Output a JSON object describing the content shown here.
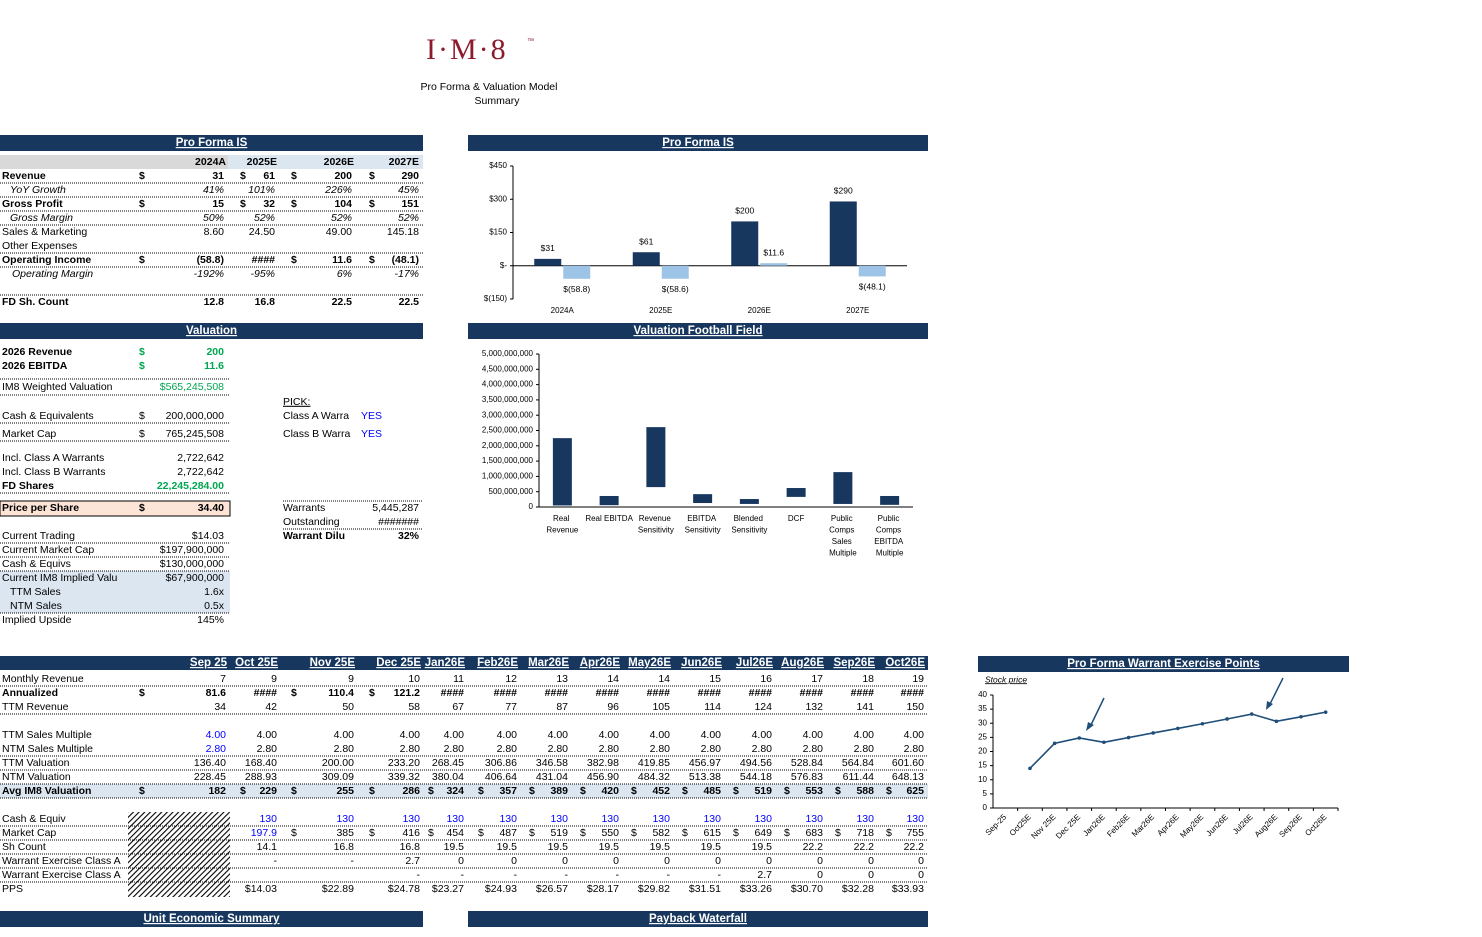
{
  "header": {
    "logo": "I·M·8",
    "trademark": "™",
    "title": "Pro Forma & Valuation Model",
    "subtitle": "Summary"
  },
  "sections": {
    "pro_forma_is": "Pro Forma IS",
    "pro_forma_is_chart": "Pro Forma IS",
    "valuation": "Valuation",
    "football_field": "Valuation Football Field ",
    "warrant_chart": "Pro Forma Warrant Exercise Points",
    "unit_economic": "Unit Economic Summary",
    "payback": "Payback Waterfall"
  },
  "is_table": {
    "columns": [
      "2024A",
      "2025E",
      "2026E",
      "2027E"
    ],
    "rows": [
      {
        "label": "Revenue",
        "currency": [
          "$",
          "$",
          "$",
          "$"
        ],
        "values": [
          "31",
          "61",
          "200",
          "290"
        ]
      },
      {
        "label": "YoY Growth",
        "values": [
          "41%",
          "101%",
          "226%",
          "45%"
        ]
      },
      {
        "label": "Gross Profit",
        "currency": [
          "$",
          "$",
          "$",
          "$"
        ],
        "values": [
          "15",
          "32",
          "104",
          "151"
        ]
      },
      {
        "label": "Gross Margin",
        "values": [
          "50%",
          "52%",
          "52%",
          "52%"
        ]
      },
      {
        "label": "Sales & Marketing",
        "values": [
          "8.60",
          "24.50",
          "49.00",
          "145.18"
        ]
      },
      {
        "label": "Other Expenses"
      },
      {
        "label": "Operating Income",
        "currency": [
          "$",
          null,
          "$",
          "$"
        ],
        "values": [
          "(58.8)",
          "####",
          "11.6",
          "(48.1)"
        ]
      },
      {
        "label": "Operating Margin",
        "values": [
          "-192%",
          "-95%",
          "6%",
          "-17%"
        ]
      },
      {
        "label": "FD Sh. Count",
        "values": [
          "12.8",
          "16.8",
          "22.5",
          "22.5"
        ]
      }
    ]
  },
  "valuation": {
    "rows": [
      {
        "label": "2026 Revenue",
        "currency": "$",
        "value": "200"
      },
      {
        "label": "2026 EBITDA",
        "currency": "$",
        "value": "11.6"
      },
      {
        "label": "IM8 Weighted Valuation",
        "value": "$565,245,508"
      },
      {
        "label": "Cash & Equivalents",
        "currency": "$",
        "value": "200,000,000"
      },
      {
        "label": "Market Cap",
        "currency": "$",
        "value": "765,245,508"
      },
      {
        "label": "Incl. Class A Warrants",
        "value": "2,722,642"
      },
      {
        "label": "Incl. Class B Warrants",
        "value": "2,722,642"
      },
      {
        "label": "FD Shares",
        "value": "22,245,284.00"
      },
      {
        "label": "Price per Share",
        "currency": "$",
        "value": "34.40"
      },
      {
        "label": "Current Trading",
        "value": "$14.03"
      },
      {
        "label": "Current Market Cap",
        "value": "$197,900,000"
      },
      {
        "label": "Cash & Equivs",
        "value": "$130,000,000"
      },
      {
        "label": "Current IM8 Implied Valu",
        "value": "$67,900,000"
      },
      {
        "label": "TTM Sales",
        "value": "1.6x"
      },
      {
        "label": "NTM Sales",
        "value": "0.5x"
      },
      {
        "label": "Implied Upside",
        "value": "145%"
      }
    ],
    "pick": {
      "title": "PICK:",
      "rows": [
        {
          "label": "Class A Warra",
          "value": "YES"
        },
        {
          "label": "Class B Warra",
          "value": "YES"
        }
      ]
    },
    "warrants": [
      {
        "label": "Warrants",
        "value": "5,445,287"
      },
      {
        "label": "Outstanding",
        "value": "#######"
      },
      {
        "label": "Warrant Dilu",
        "value": "32%"
      }
    ]
  },
  "monthly_table": {
    "columns": [
      "Sep 25",
      "Oct 25E",
      "Nov 25E",
      "Dec 25E",
      "Jan26E",
      "Feb26E",
      "Mar26E",
      "Apr26E",
      "May26E",
      "Jun26E",
      "Jul26E",
      "Aug26E",
      "Sep26E",
      "Oct26E"
    ],
    "rows": [
      {
        "label": "Monthly Revenue",
        "values": [
          "7",
          "9",
          "9",
          "10",
          "11",
          "12",
          "13",
          "14",
          "14",
          "15",
          "16",
          "17",
          "18",
          "19"
        ]
      },
      {
        "label": "Annualized",
        "currency": [
          "$",
          null,
          "$",
          "$",
          null,
          null,
          null,
          null,
          null,
          null,
          null,
          null,
          null,
          null
        ],
        "values": [
          "81.6",
          "####",
          "110.4",
          "121.2",
          "####",
          "####",
          "####",
          "####",
          "####",
          "####",
          "####",
          "####",
          "####",
          "####"
        ]
      },
      {
        "label": "TTM Revenue",
        "values": [
          "34",
          "42",
          "50",
          "58",
          "67",
          "77",
          "87",
          "96",
          "105",
          "114",
          "124",
          "132",
          "141",
          "150"
        ]
      },
      {
        "label": "TTM Sales Multiple",
        "values": [
          "4.00",
          "4.00",
          "4.00",
          "4.00",
          "4.00",
          "4.00",
          "4.00",
          "4.00",
          "4.00",
          "4.00",
          "4.00",
          "4.00",
          "4.00",
          "4.00"
        ]
      },
      {
        "label": "NTM Sales Multiple",
        "values": [
          "2.80",
          "2.80",
          "2.80",
          "2.80",
          "2.80",
          "2.80",
          "2.80",
          "2.80",
          "2.80",
          "2.80",
          "2.80",
          "2.80",
          "2.80",
          "2.80"
        ]
      },
      {
        "label": "TTM Valuation",
        "values": [
          "136.40",
          "168.40",
          "200.00",
          "233.20",
          "268.45",
          "306.86",
          "346.58",
          "382.98",
          "419.85",
          "456.97",
          "494.56",
          "528.84",
          "564.84",
          "601.60"
        ]
      },
      {
        "label": "NTM Valuation",
        "values": [
          "228.45",
          "288.93",
          "309.09",
          "339.32",
          "380.04",
          "406.64",
          "431.04",
          "456.90",
          "484.32",
          "513.38",
          "544.18",
          "576.83",
          "611.44",
          "648.13"
        ]
      },
      {
        "label": "Avg IM8 Valuation",
        "currency": [
          "$",
          "$",
          "$",
          "$",
          "$",
          "$",
          "$",
          "$",
          "$",
          "$",
          "$",
          "$",
          "$",
          "$"
        ],
        "values": [
          "182",
          "229",
          "255",
          "286",
          "324",
          "357",
          "389",
          "420",
          "452",
          "485",
          "519",
          "553",
          "588",
          "625"
        ]
      },
      {
        "label": "Cash & Equiv",
        "values": [
          null,
          "130",
          "130",
          "130",
          "130",
          "130",
          "130",
          "130",
          "130",
          "130",
          "130",
          "130",
          "130",
          "130"
        ]
      },
      {
        "label": "Market Cap",
        "currency": [
          null,
          null,
          "$",
          "$",
          "$",
          "$",
          "$",
          "$",
          "$",
          "$",
          "$",
          "$",
          "$",
          "$"
        ],
        "values": [
          null,
          "197.9",
          "385",
          "416",
          "454",
          "487",
          "519",
          "550",
          "582",
          "615",
          "649",
          "683",
          "718",
          "755"
        ]
      },
      {
        "label": "Sh Count",
        "values": [
          null,
          "14.1",
          "16.8",
          "16.8",
          "19.5",
          "19.5",
          "19.5",
          "19.5",
          "19.5",
          "19.5",
          "19.5",
          "22.2",
          "22.2",
          "22.2"
        ]
      },
      {
        "label": "Warrant Exercise Class A",
        "values": [
          null,
          "-",
          "-",
          "2.7",
          "0",
          "0",
          "0",
          "0",
          "0",
          "0",
          "0",
          "0",
          "0",
          "0"
        ]
      },
      {
        "label": "Warrant Exercise Class A",
        "values": [
          null,
          null,
          null,
          "-",
          "-",
          "-",
          "-",
          "-",
          "-",
          "-",
          "2.7",
          "0",
          "0",
          "0"
        ]
      },
      {
        "label": "PPS",
        "values": [
          null,
          "$14.03",
          "$22.89",
          "$24.78",
          "$23.27",
          "$24.93",
          "$26.57",
          "$28.17",
          "$29.82",
          "$31.51",
          "$33.26",
          "$30.70",
          "$32.28",
          "$33.93"
        ]
      }
    ]
  },
  "is_chart": {
    "type": "bar",
    "categories": [
      "2024A",
      "2025E",
      "2026E",
      "2027E"
    ],
    "series": [
      {
        "color": "#17375e",
        "values": [
          31,
          61,
          200,
          290
        ],
        "value_labels": [
          "$31",
          "$61",
          "$200",
          "$290"
        ]
      },
      {
        "color": "#9dc3e6",
        "values": [
          -58.8,
          -58.6,
          11.6,
          -48.1
        ],
        "value_labels": [
          "$(58.8)",
          "$(58.6)",
          "$11.6",
          "$(48.1)"
        ]
      }
    ],
    "ylim": [
      -150,
      450
    ],
    "yticks": [
      {
        "value": -150,
        "label": "$(150)"
      },
      {
        "value": 0,
        "label": "$-"
      },
      {
        "value": 150,
        "label": "$150"
      },
      {
        "value": 300,
        "label": "$300"
      },
      {
        "value": 450,
        "label": "$450"
      }
    ]
  },
  "football_chart": {
    "type": "floating_bar",
    "color": "#17375e",
    "categories": [
      "Real Revenue",
      "Real EBITDA",
      "Revenue Sensitivity",
      "EBITDA Sensitivity",
      "Blended Sensitivity",
      "DCF",
      "Public Comps Sales Multiple",
      "Public Comps EBITDA Multiple"
    ],
    "low": [
      50000000,
      60000000,
      650000000,
      130000000,
      100000000,
      330000000,
      100000000,
      70000000
    ],
    "high": [
      2250000000,
      360000000,
      2610000000,
      420000000,
      260000000,
      620000000,
      1140000000,
      360000000
    ],
    "ylim": [
      0,
      5000000000
    ],
    "yticks": [
      0,
      {
        "value": 500000000,
        "label": "500,000,000"
      },
      {
        "value": 1000000000,
        "label": "1,000,000,000"
      },
      {
        "value": 1500000000,
        "label": "1,500,000,000"
      },
      {
        "value": 2000000000,
        "label": "2,000,000,000"
      },
      {
        "value": 2500000000,
        "label": "2,500,000,000"
      },
      {
        "value": 3000000000,
        "label": "3,000,000,000"
      },
      {
        "value": 3500000000,
        "label": "3,500,000,000"
      },
      {
        "value": 4000000000,
        "label": "4,000,000,000"
      },
      {
        "value": 4500000000,
        "label": "4,500,000,000"
      },
      {
        "value": 5000000000,
        "label": "5,000,000,000"
      }
    ]
  },
  "warrant_chart": {
    "type": "line",
    "categories": [
      "Sep-25",
      "Oct25E",
      "Nov 25E",
      "Dec 25E",
      "Jan26E",
      "Feb26E",
      "Mar26E",
      "Apr26E",
      "May26E",
      "Jun26E",
      "Jul26E",
      "Aug26E",
      "Sep26E",
      "Oct26E"
    ],
    "series": [
      {
        "name": "Stock price",
        "color": "#1f4e79",
        "values": [
          null,
          14.03,
          22.89,
          24.78,
          23.27,
          24.93,
          26.57,
          28.17,
          29.82,
          31.51,
          33.26,
          30.7,
          32.28,
          33.93
        ]
      }
    ],
    "ylim": [
      0,
      40
    ],
    "yticks": [
      0,
      5,
      10,
      15,
      20,
      25,
      30,
      35,
      40
    ]
  }
}
